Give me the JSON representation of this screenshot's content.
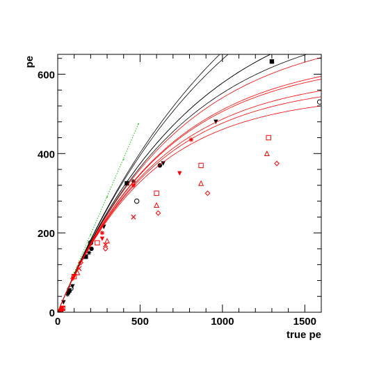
{
  "chart_data": {
    "type": "scatter",
    "title": "",
    "xlabel": "true pe",
    "ylabel": "pe",
    "xlim": [
      0,
      1600
    ],
    "ylim": [
      0,
      650
    ],
    "x_ticks": [
      0,
      500,
      1000,
      1500
    ],
    "y_ticks": [
      0,
      200,
      400,
      600
    ],
    "x_tick_labels": [
      "0",
      "500",
      "1000",
      "1500"
    ],
    "y_tick_labels": [
      "0",
      "200",
      "400",
      "600"
    ],
    "grid": false,
    "legend": "none",
    "colors": {
      "black": "#000000",
      "red": "#ff0000",
      "green": "#00cc00"
    },
    "series": [
      {
        "color": "black",
        "marker": "square-filled",
        "sat": 1100,
        "points": [
          [
            15,
            0
          ],
          [
            70,
            55
          ],
          [
            170,
            140
          ],
          [
            420,
            325
          ],
          [
            1300,
            632
          ]
        ]
      },
      {
        "color": "black",
        "marker": "triangle-down-filled",
        "sat": 820,
        "points": [
          [
            35,
            25
          ],
          [
            90,
            65
          ],
          [
            280,
            215
          ],
          [
            640,
            375
          ],
          [
            960,
            480
          ]
        ]
      },
      {
        "color": "black",
        "marker": "circle-filled",
        "sat": 820,
        "points": [
          [
            15,
            0
          ],
          [
            65,
            50
          ],
          [
            205,
            160
          ],
          [
            620,
            370
          ]
        ]
      },
      {
        "color": "black",
        "marker": "circle-open",
        "sat": 1020,
        "points": [
          [
            20,
            5
          ],
          [
            80,
            60
          ],
          [
            200,
            175
          ],
          [
            480,
            280
          ],
          [
            1590,
            530
          ]
        ]
      },
      {
        "color": "black",
        "marker": "star",
        "sat": 750,
        "points": [
          [
            20,
            3
          ],
          [
            60,
            45
          ],
          [
            190,
            150
          ],
          [
            460,
            330
          ]
        ]
      },
      {
        "color": "red",
        "marker": "star",
        "sat": 720,
        "points": [
          [
            20,
            5
          ],
          [
            90,
            85
          ],
          [
            270,
            200
          ],
          [
            460,
            320
          ],
          [
            810,
            435
          ]
        ]
      },
      {
        "color": "red",
        "marker": "triangle-down-filled",
        "sat": 650,
        "points": [
          [
            25,
            10
          ],
          [
            100,
            90
          ],
          [
            270,
            185
          ],
          [
            740,
            350
          ]
        ]
      },
      {
        "color": "red",
        "marker": "square-open",
        "sat": 640,
        "points": [
          [
            30,
            10
          ],
          [
            100,
            90
          ],
          [
            240,
            175
          ],
          [
            600,
            300
          ],
          [
            870,
            370
          ],
          [
            1280,
            440
          ]
        ]
      },
      {
        "color": "red",
        "marker": "triangle-up-open",
        "sat": 600,
        "points": [
          [
            20,
            5
          ],
          [
            120,
            100
          ],
          [
            300,
            180
          ],
          [
            600,
            270
          ],
          [
            870,
            325
          ],
          [
            1270,
            400
          ]
        ]
      },
      {
        "color": "red",
        "marker": "cross",
        "sat": 580,
        "points": [
          [
            30,
            10
          ],
          [
            130,
            110
          ],
          [
            290,
            170
          ],
          [
            460,
            240
          ]
        ]
      },
      {
        "color": "red",
        "marker": "diamond-open",
        "sat": 550,
        "points": [
          [
            25,
            8
          ],
          [
            140,
            125
          ],
          [
            290,
            160
          ],
          [
            610,
            250
          ],
          [
            910,
            300
          ],
          [
            1330,
            375
          ]
        ]
      },
      {
        "color": "green",
        "marker": "dot",
        "sat": null,
        "points": [
          [
            100,
            100
          ],
          [
            200,
            195
          ],
          [
            300,
            290
          ],
          [
            400,
            385
          ],
          [
            490,
            475
          ]
        ]
      }
    ]
  }
}
